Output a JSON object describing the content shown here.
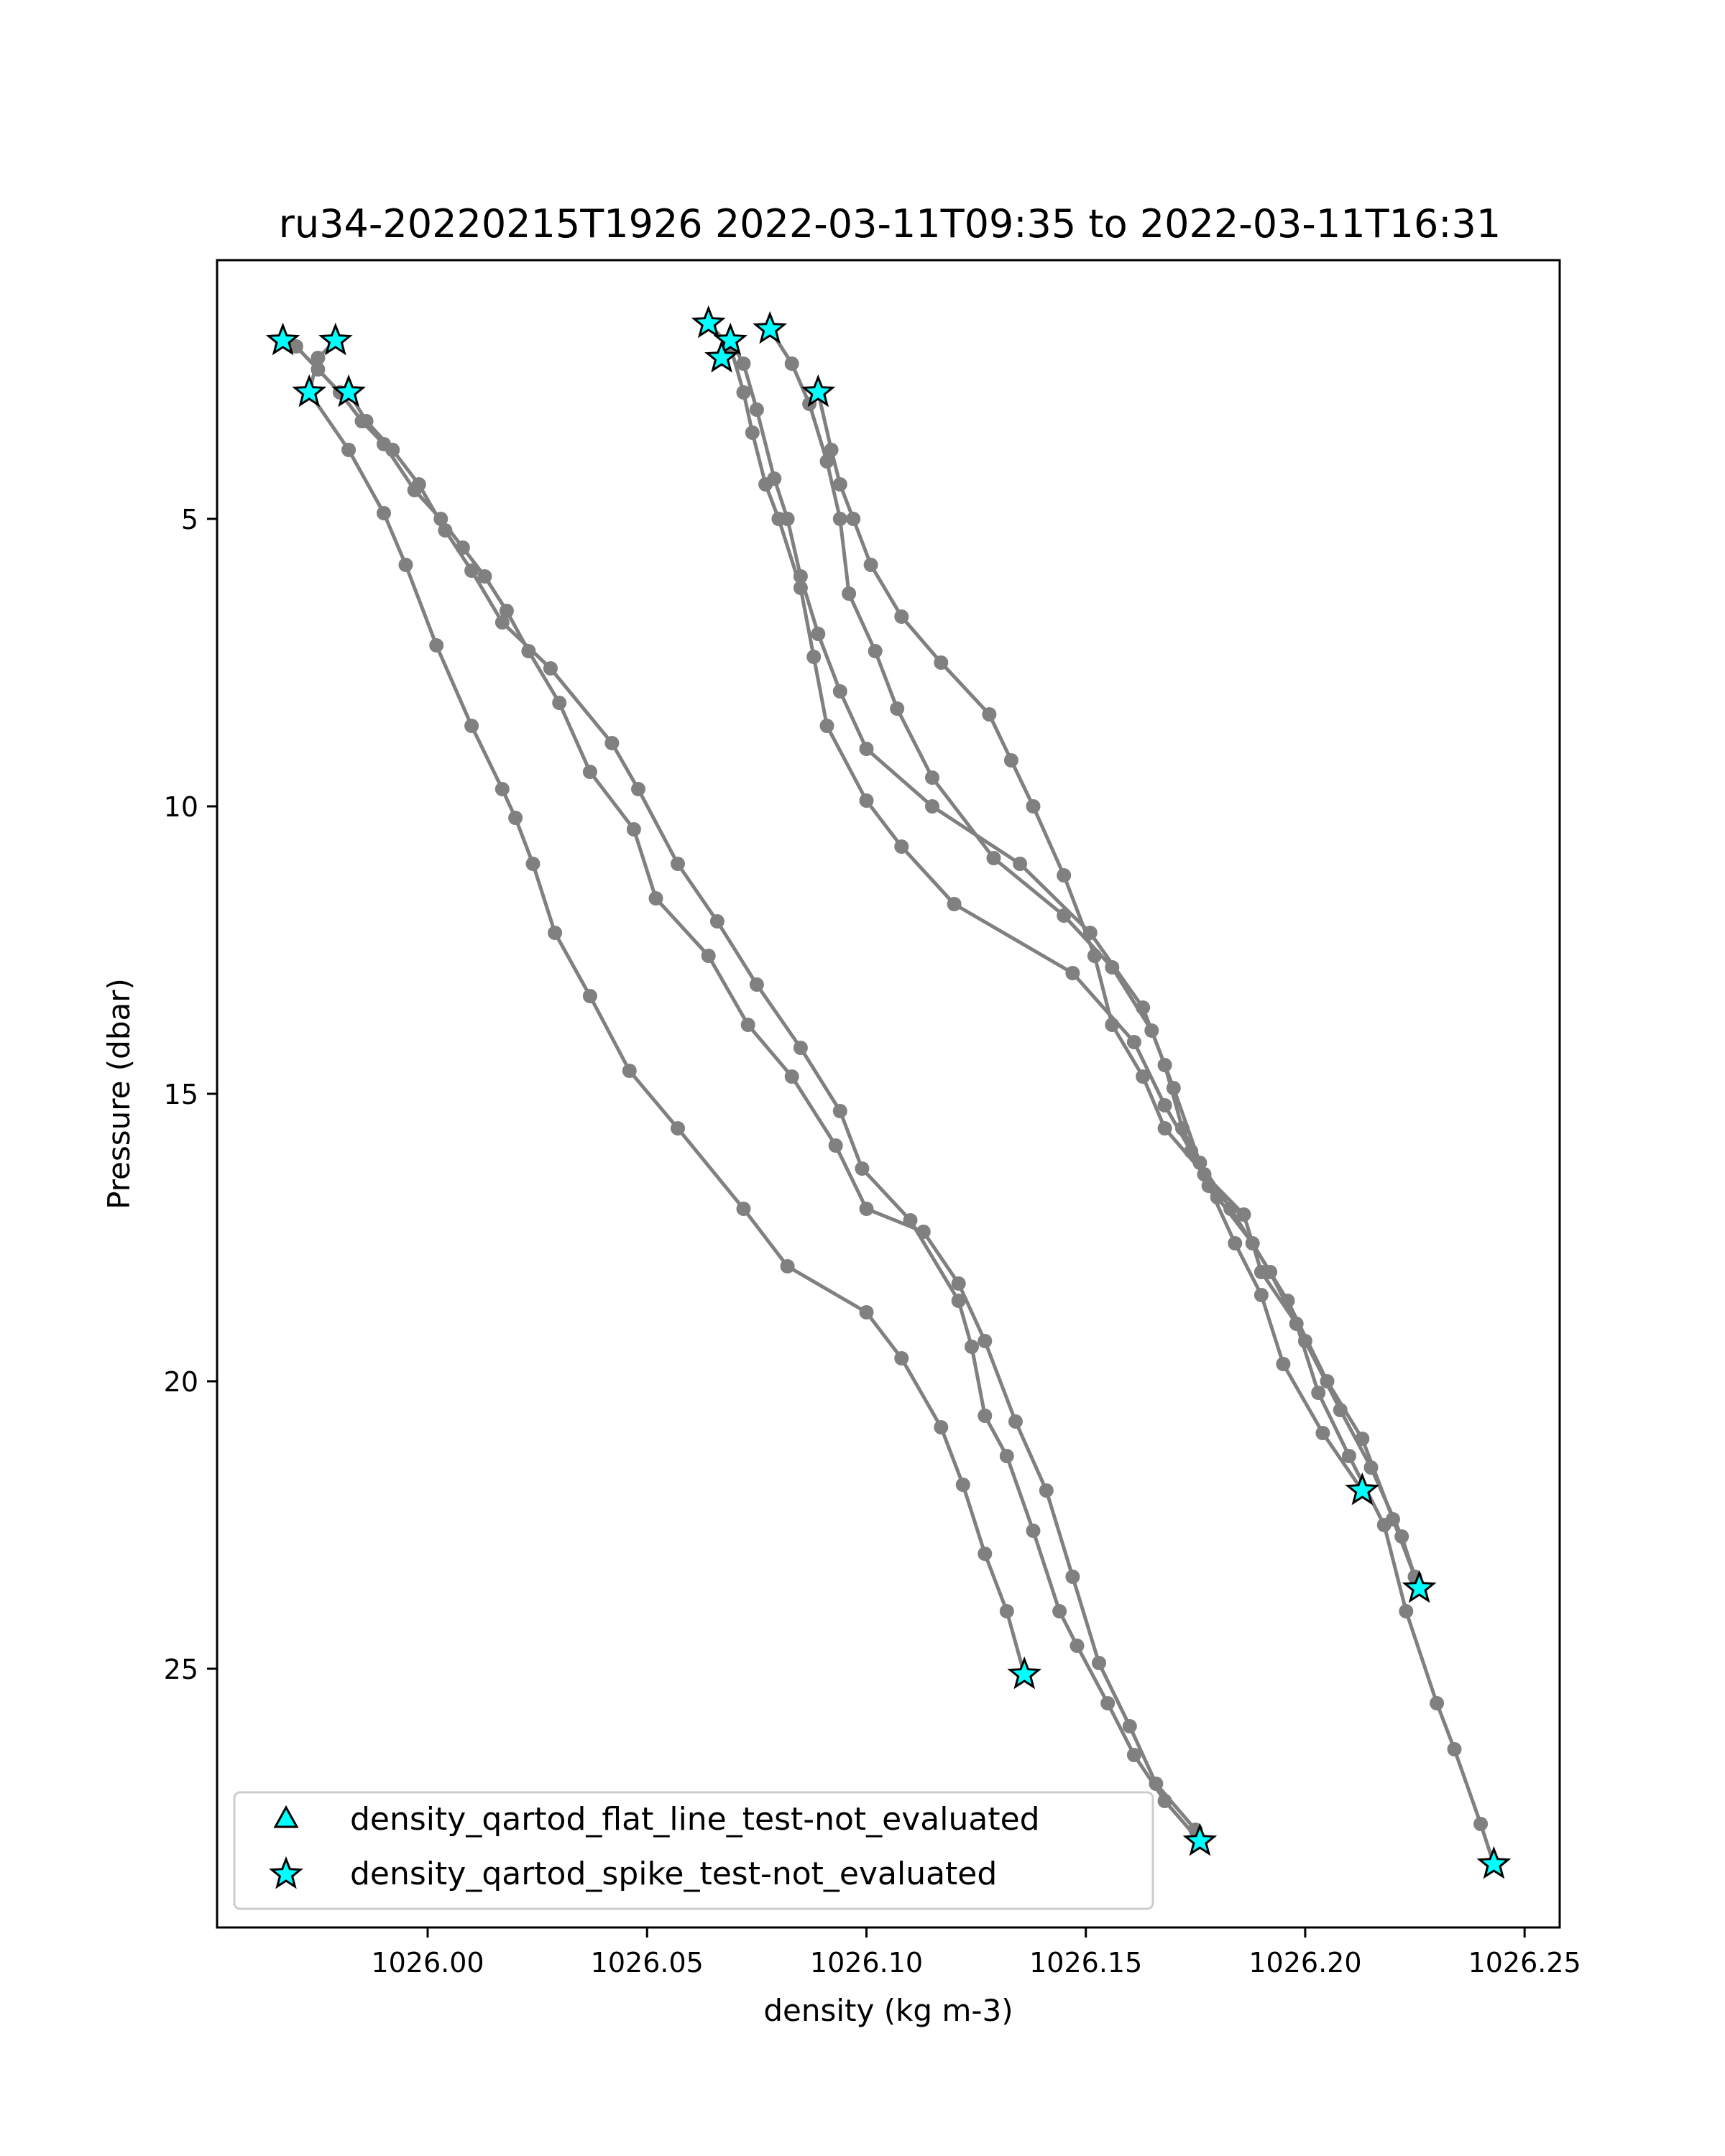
{
  "chart_data": {
    "type": "line",
    "title": "ru34-20220215T1926 2022-03-11T09:35 to 2022-03-11T16:31",
    "xlabel": "density (kg m-3)",
    "ylabel": "Pressure (dbar)",
    "xlim": [
      1025.952,
      1026.258
    ],
    "ylim": [
      29.5,
      0.5
    ],
    "y_inverted": true,
    "xticks": [
      1026.0,
      1026.05,
      1026.1,
      1026.15,
      1026.2,
      1026.25
    ],
    "xtick_labels": [
      "1026.00",
      "1026.05",
      "1026.10",
      "1026.15",
      "1026.20",
      "1026.25"
    ],
    "yticks": [
      5,
      10,
      15,
      20,
      25
    ],
    "ytick_labels": [
      "5",
      "10",
      "15",
      "20",
      "25"
    ],
    "grid": false,
    "legend_position": "lower-left",
    "line_color": "#808080",
    "marker_color": "#00FFFF",
    "series": [
      {
        "name": "",
        "points": [
          [
            1025.967,
            1.9
          ],
          [
            1025.97,
            2.0
          ],
          [
            1025.975,
            2.4
          ],
          [
            1025.98,
            2.8
          ],
          [
            1025.985,
            3.3
          ],
          [
            1025.99,
            3.7
          ],
          [
            1025.997,
            4.5
          ],
          [
            1026.003,
            5.0
          ],
          [
            1026.008,
            5.5
          ],
          [
            1026.013,
            6.0
          ],
          [
            1026.018,
            6.6
          ],
          [
            1026.023,
            7.3
          ],
          [
            1026.03,
            8.2
          ],
          [
            1026.037,
            9.4
          ],
          [
            1026.047,
            10.4
          ],
          [
            1026.052,
            11.6
          ],
          [
            1026.064,
            12.6
          ],
          [
            1026.073,
            13.8
          ],
          [
            1026.083,
            14.7
          ],
          [
            1026.093,
            15.9
          ],
          [
            1026.1,
            17.0
          ],
          [
            1026.113,
            17.4
          ],
          [
            1026.121,
            18.3
          ],
          [
            1026.127,
            19.3
          ],
          [
            1026.134,
            20.7
          ],
          [
            1026.141,
            21.9
          ],
          [
            1026.147,
            23.4
          ],
          [
            1026.153,
            24.9
          ],
          [
            1026.16,
            26.0
          ],
          [
            1026.166,
            27.0
          ],
          [
            1026.175,
            27.8
          ]
        ]
      },
      {
        "name": "",
        "points": [
          [
            1025.979,
            1.9
          ],
          [
            1025.975,
            2.2
          ],
          [
            1025.973,
            2.8
          ],
          [
            1025.982,
            3.8
          ],
          [
            1025.99,
            4.9
          ],
          [
            1025.995,
            5.8
          ],
          [
            1026.002,
            7.2
          ],
          [
            1026.01,
            8.6
          ],
          [
            1026.017,
            9.7
          ],
          [
            1026.02,
            10.2
          ],
          [
            1026.024,
            11.0
          ],
          [
            1026.029,
            12.2
          ],
          [
            1026.037,
            13.3
          ],
          [
            1026.046,
            14.6
          ],
          [
            1026.057,
            15.6
          ],
          [
            1026.072,
            17.0
          ],
          [
            1026.082,
            18.0
          ],
          [
            1026.1,
            18.8
          ],
          [
            1026.108,
            19.6
          ],
          [
            1026.117,
            20.8
          ],
          [
            1026.122,
            21.8
          ],
          [
            1026.127,
            23.0
          ],
          [
            1026.132,
            24.0
          ],
          [
            1026.136,
            25.1
          ]
        ]
      },
      {
        "name": "",
        "points": [
          [
            1025.982,
            2.8
          ],
          [
            1025.986,
            3.3
          ],
          [
            1025.992,
            3.8
          ],
          [
            1025.998,
            4.4
          ],
          [
            1026.004,
            5.2
          ],
          [
            1026.01,
            5.9
          ],
          [
            1026.017,
            6.8
          ],
          [
            1026.028,
            7.6
          ],
          [
            1026.042,
            8.9
          ],
          [
            1026.048,
            9.7
          ],
          [
            1026.057,
            11.0
          ],
          [
            1026.066,
            12.0
          ],
          [
            1026.075,
            13.1
          ],
          [
            1026.085,
            14.2
          ],
          [
            1026.094,
            15.3
          ],
          [
            1026.099,
            16.3
          ],
          [
            1026.11,
            17.2
          ],
          [
            1026.121,
            18.6
          ],
          [
            1026.124,
            19.4
          ],
          [
            1026.127,
            20.6
          ],
          [
            1026.132,
            21.3
          ],
          [
            1026.138,
            22.6
          ],
          [
            1026.144,
            24.0
          ],
          [
            1026.148,
            24.6
          ],
          [
            1026.155,
            25.6
          ],
          [
            1026.161,
            26.5
          ],
          [
            1026.168,
            27.3
          ],
          [
            1026.176,
            28.0
          ]
        ]
      },
      {
        "name": "",
        "points": [
          [
            1026.064,
            1.6
          ],
          [
            1026.069,
            2.0
          ],
          [
            1026.072,
            2.8
          ],
          [
            1026.074,
            3.5
          ],
          [
            1026.077,
            4.4
          ],
          [
            1026.08,
            5.0
          ],
          [
            1026.085,
            6.2
          ],
          [
            1026.088,
            7.4
          ],
          [
            1026.091,
            8.6
          ],
          [
            1026.1,
            9.9
          ],
          [
            1026.108,
            10.7
          ],
          [
            1026.12,
            11.7
          ],
          [
            1026.147,
            12.9
          ],
          [
            1026.161,
            14.1
          ],
          [
            1026.168,
            15.2
          ],
          [
            1026.174,
            16.0
          ],
          [
            1026.178,
            16.6
          ],
          [
            1026.184,
            17.6
          ],
          [
            1026.19,
            18.5
          ],
          [
            1026.195,
            19.7
          ],
          [
            1026.204,
            20.9
          ],
          [
            1026.213,
            21.9
          ]
        ]
      },
      {
        "name": "",
        "points": [
          [
            1026.069,
            1.9
          ],
          [
            1026.072,
            2.3
          ],
          [
            1026.075,
            3.1
          ],
          [
            1026.079,
            4.3
          ],
          [
            1026.082,
            5.0
          ],
          [
            1026.085,
            6.0
          ],
          [
            1026.089,
            7.0
          ],
          [
            1026.094,
            8.0
          ],
          [
            1026.1,
            9.0
          ],
          [
            1026.115,
            10.0
          ],
          [
            1026.135,
            11.0
          ],
          [
            1026.151,
            12.2
          ],
          [
            1026.163,
            13.5
          ],
          [
            1026.168,
            14.5
          ],
          [
            1026.172,
            15.6
          ],
          [
            1026.18,
            16.8
          ],
          [
            1026.188,
            17.6
          ],
          [
            1026.196,
            18.6
          ],
          [
            1026.205,
            20.0
          ],
          [
            1026.213,
            21.0
          ],
          [
            1026.22,
            22.4
          ],
          [
            1026.226,
            23.6
          ]
        ]
      },
      {
        "name": "",
        "points": [
          [
            1026.078,
            1.7
          ],
          [
            1026.083,
            2.3
          ],
          [
            1026.087,
            3.0
          ],
          [
            1026.091,
            4.0
          ],
          [
            1026.094,
            5.0
          ],
          [
            1026.096,
            6.3
          ],
          [
            1026.102,
            7.3
          ],
          [
            1026.107,
            8.3
          ],
          [
            1026.115,
            9.5
          ],
          [
            1026.129,
            10.9
          ],
          [
            1026.145,
            11.9
          ],
          [
            1026.156,
            12.8
          ],
          [
            1026.165,
            13.9
          ],
          [
            1026.17,
            14.9
          ],
          [
            1026.176,
            16.2
          ],
          [
            1026.183,
            17.0
          ],
          [
            1026.192,
            18.1
          ],
          [
            1026.2,
            19.3
          ],
          [
            1026.208,
            20.5
          ],
          [
            1026.215,
            21.5
          ],
          [
            1026.222,
            22.7
          ],
          [
            1026.225,
            23.4
          ]
        ]
      },
      {
        "name": "",
        "points": [
          [
            1026.089,
            2.8
          ],
          [
            1026.092,
            3.8
          ],
          [
            1026.094,
            4.4
          ],
          [
            1026.097,
            5.0
          ],
          [
            1026.101,
            5.8
          ],
          [
            1026.108,
            6.7
          ],
          [
            1026.117,
            7.5
          ],
          [
            1026.128,
            8.4
          ],
          [
            1026.133,
            9.2
          ],
          [
            1026.138,
            10.0
          ],
          [
            1026.145,
            11.2
          ],
          [
            1026.152,
            12.6
          ],
          [
            1026.156,
            13.8
          ],
          [
            1026.163,
            14.7
          ],
          [
            1026.168,
            15.6
          ],
          [
            1026.177,
            16.4
          ],
          [
            1026.186,
            17.1
          ],
          [
            1026.19,
            18.1
          ],
          [
            1026.198,
            19.0
          ],
          [
            1026.203,
            20.2
          ],
          [
            1026.21,
            21.3
          ],
          [
            1026.218,
            22.5
          ],
          [
            1026.223,
            24.0
          ],
          [
            1026.23,
            25.6
          ],
          [
            1026.234,
            26.4
          ],
          [
            1026.24,
            27.7
          ],
          [
            1026.243,
            28.4
          ]
        ]
      }
    ],
    "spike_markers": [
      [
        1025.967,
        1.9
      ],
      [
        1025.979,
        1.9
      ],
      [
        1025.973,
        2.8
      ],
      [
        1025.982,
        2.8
      ],
      [
        1026.064,
        1.6
      ],
      [
        1026.078,
        1.7
      ],
      [
        1026.069,
        1.9
      ],
      [
        1026.067,
        2.2
      ],
      [
        1026.089,
        2.8
      ],
      [
        1026.213,
        21.9
      ],
      [
        1026.226,
        23.6
      ],
      [
        1026.136,
        25.1
      ],
      [
        1026.176,
        28.0
      ],
      [
        1026.243,
        28.4
      ]
    ],
    "legend": [
      {
        "label": "density_qartod_flat_line_test-not_evaluated",
        "marker": "triangle"
      },
      {
        "label": "density_qartod_spike_test-not_evaluated",
        "marker": "star"
      }
    ]
  }
}
